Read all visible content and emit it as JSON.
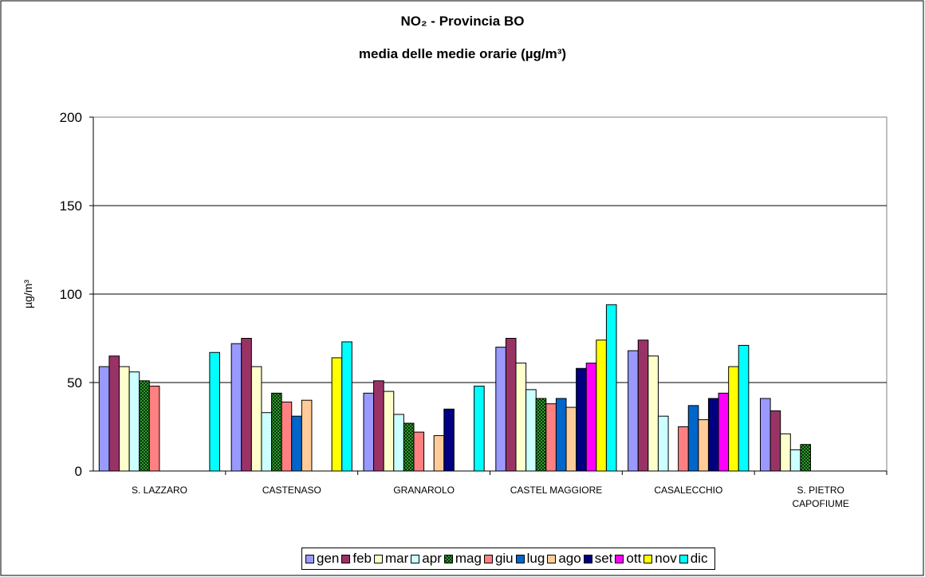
{
  "chart_data": {
    "type": "bar",
    "title": "NO₂ - Provincia BO",
    "subtitle": "media delle medie orarie (µg/m³)",
    "y_label": "µg/m³",
    "categories": [
      "S. LAZZARO",
      "CASTENASO",
      "GRANAROLO",
      "CASTEL MAGGIORE",
      "CASALECCHIO",
      "S. PIETRO\nCAPOFIUME"
    ],
    "series": [
      {
        "name": "gen",
        "color": "#9999ff",
        "values": [
          59,
          72,
          44,
          70,
          68,
          41
        ]
      },
      {
        "name": "feb",
        "color": "#993366",
        "values": [
          65,
          75,
          51,
          75,
          74,
          34
        ]
      },
      {
        "name": "mar",
        "color": "#ffffcc",
        "values": [
          59,
          59,
          45,
          61,
          65,
          21
        ]
      },
      {
        "name": "apr",
        "color": "#ccffff",
        "values": [
          56,
          33,
          32,
          46,
          31,
          12
        ]
      },
      {
        "name": "mag",
        "color": "#339933",
        "pattern": "checkered",
        "values": [
          51,
          44,
          27,
          41,
          null,
          15
        ]
      },
      {
        "name": "giu",
        "color": "#ff8080",
        "values": [
          48,
          39,
          22,
          38,
          25,
          null
        ]
      },
      {
        "name": "lug",
        "color": "#0066cc",
        "values": [
          null,
          31,
          null,
          41,
          37,
          null
        ]
      },
      {
        "name": "ago",
        "color": "#ffcc99",
        "values": [
          null,
          40,
          20,
          36,
          29,
          null
        ]
      },
      {
        "name": "set",
        "color": "#000080",
        "values": [
          null,
          null,
          35,
          58,
          41,
          null
        ]
      },
      {
        "name": "ott",
        "color": "#ff00ff",
        "values": [
          null,
          null,
          null,
          61,
          44,
          null
        ]
      },
      {
        "name": "nov",
        "color": "#ffff00",
        "values": [
          null,
          64,
          null,
          74,
          59,
          null
        ]
      },
      {
        "name": "dic",
        "color": "#00ffff",
        "values": [
          67,
          73,
          48,
          94,
          71,
          null
        ]
      }
    ],
    "ylim": [
      0,
      200
    ],
    "yticks": [
      0,
      50,
      100,
      150,
      200
    ],
    "grid": true,
    "legend": "bottom"
  }
}
